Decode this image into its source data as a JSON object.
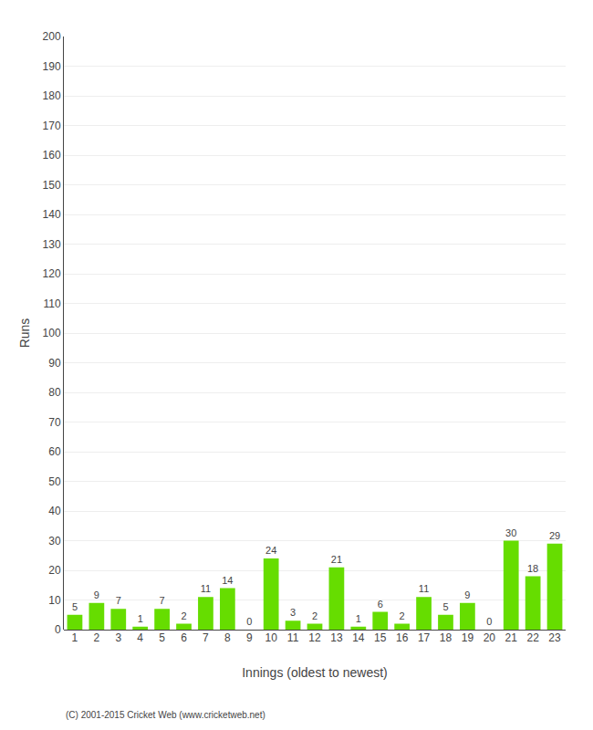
{
  "chart_data": {
    "type": "bar",
    "xlabel": "Innings (oldest to newest)",
    "ylabel": "Runs",
    "categories": [
      "1",
      "2",
      "3",
      "4",
      "5",
      "6",
      "7",
      "8",
      "9",
      "10",
      "11",
      "12",
      "13",
      "14",
      "15",
      "16",
      "17",
      "18",
      "19",
      "20",
      "21",
      "22",
      "23"
    ],
    "values": [
      5,
      9,
      7,
      1,
      7,
      2,
      11,
      14,
      0,
      24,
      3,
      2,
      21,
      1,
      6,
      2,
      11,
      5,
      9,
      0,
      30,
      18,
      29
    ],
    "color": "#66dd00",
    "ylim": [
      0,
      200
    ],
    "yticks": [
      0,
      10,
      20,
      30,
      40,
      50,
      60,
      70,
      80,
      90,
      100,
      110,
      120,
      130,
      140,
      150,
      160,
      170,
      180,
      190,
      200
    ],
    "grid": true,
    "data_labels": true,
    "annotations": [
      "(C) 2001-2015 Cricket Web (www.cricketweb.net)"
    ]
  }
}
